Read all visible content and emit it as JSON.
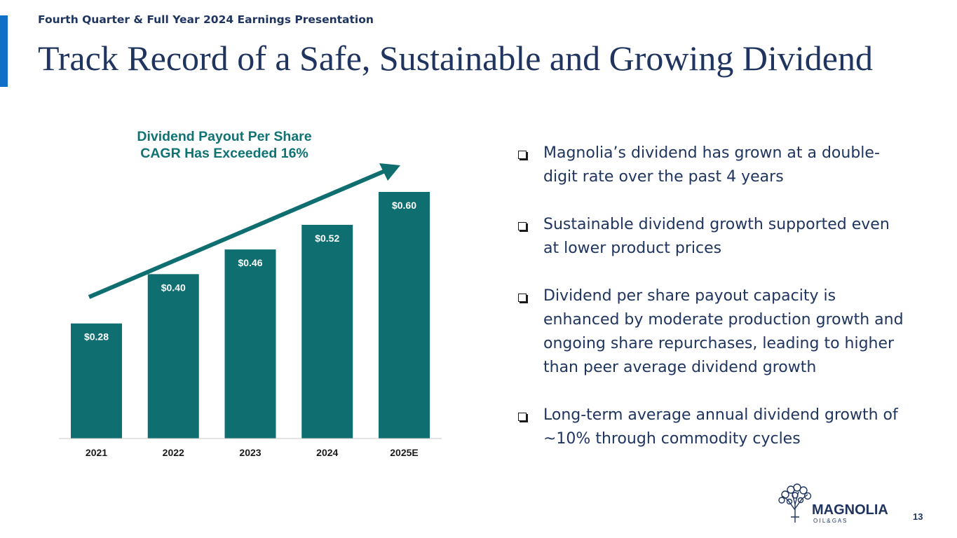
{
  "header": {
    "subtitle": "Fourth Quarter & Full Year 2024 Earnings Presentation",
    "title": "Track Record of a Safe, Sustainable and Growing Dividend"
  },
  "chart_title_lines": [
    "Dividend Payout Per Share",
    "CAGR Has Exceeded 16%"
  ],
  "chart_data": {
    "type": "bar",
    "title": "Dividend Payout Per Share CAGR Has Exceeded 16%",
    "categories": [
      "2021",
      "2022",
      "2023",
      "2024",
      "2025E"
    ],
    "values": [
      0.28,
      0.4,
      0.46,
      0.52,
      0.6
    ],
    "labels": [
      "$0.28",
      "$0.40",
      "$0.46",
      "$0.52",
      "$0.60"
    ],
    "xlabel": "",
    "ylabel": "",
    "ylim": [
      0,
      0.6
    ],
    "bar_color": "#0f6e70",
    "trend_arrow": true
  },
  "bullets": [
    "Magnolia’s dividend has grown at a double-digit rate over the past 4 years",
    "Sustainable dividend growth supported even at lower product prices",
    "Dividend per share payout capacity is enhanced by moderate production growth and ongoing share repurchases, leading to higher than peer average dividend growth",
    "Long-term average annual dividend growth of ~10% through commodity cycles"
  ],
  "logo": {
    "name": "MAGNOLIA",
    "sub": "O I L & G A S"
  },
  "page_number": "13",
  "colors": {
    "navy": "#1f3560",
    "teal": "#0f6e70",
    "accent": "#1070c8"
  }
}
